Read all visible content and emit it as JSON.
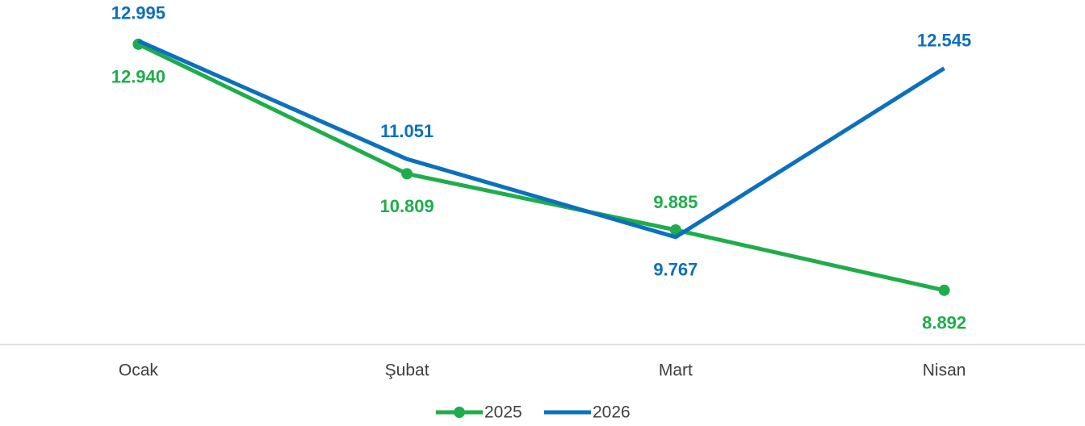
{
  "chart_data": {
    "type": "line",
    "categories": [
      "Ocak",
      "Şubat",
      "Mart",
      "Nisan"
    ],
    "series": [
      {
        "name": "2025",
        "color": "#1fad4b",
        "markers": true,
        "values": [
          12940,
          10809,
          9885,
          8892
        ],
        "value_labels": [
          "12.940",
          "10.809",
          "9.885",
          "8.892"
        ]
      },
      {
        "name": "2026",
        "color": "#0b70bd",
        "markers": false,
        "values": [
          12995,
          11051,
          9767,
          12545
        ],
        "value_labels": [
          "12.995",
          "11.051",
          "9.767",
          "12.545"
        ]
      }
    ],
    "ylim": [
      8000,
      14000
    ],
    "legend": "bottom"
  }
}
